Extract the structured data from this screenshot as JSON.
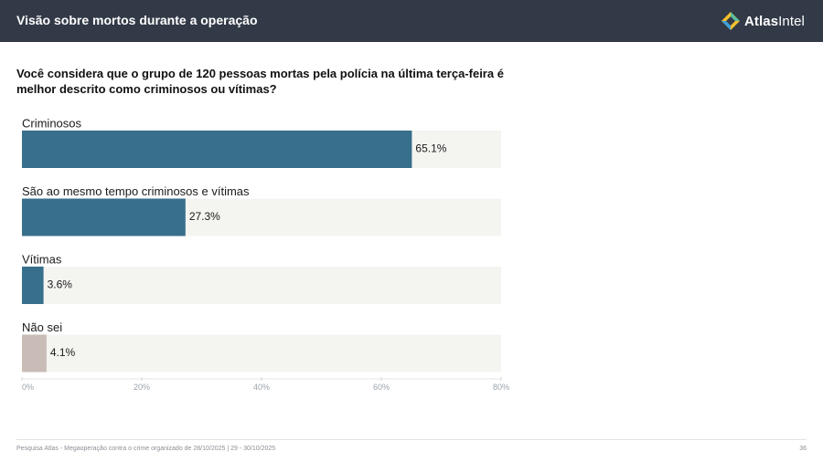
{
  "header": {
    "title": "Visão sobre mortos durante a operação",
    "logo_text_a": "Atlas",
    "logo_text_b": "Intel"
  },
  "question": "Você considera que o grupo de 120 pessoas mortas pela polícia na última terça-feira é melhor descrito como criminosos ou vítimas?",
  "chart_data": {
    "type": "bar",
    "orientation": "horizontal",
    "categories": [
      "Criminosos",
      "São ao mesmo tempo criminosos e vítimas",
      "Vítimas",
      "Não sei"
    ],
    "values": [
      65.1,
      27.3,
      3.6,
      4.1
    ],
    "value_labels": [
      "65.1%",
      "27.3%",
      "3.6%",
      "4.1%"
    ],
    "colors": [
      "#386f8c",
      "#386f8c",
      "#386f8c",
      "#c9bcb6"
    ],
    "track_color": "#f4f4f0",
    "xlim": [
      0,
      80
    ],
    "xticks": [
      0,
      20,
      40,
      60,
      80
    ],
    "xtick_labels": [
      "0%",
      "20%",
      "40%",
      "60%",
      "80%"
    ],
    "grid": false
  },
  "footer": {
    "source": "Pesquisa Atlas - Megaoperação contra o crime organizado de 28/10/2025 | 29 - 30/10/2025",
    "page_number": "36"
  },
  "colors": {
    "header_bg": "#333a47",
    "bar": "#386f8c",
    "bar_unknown": "#c9bcb6"
  }
}
